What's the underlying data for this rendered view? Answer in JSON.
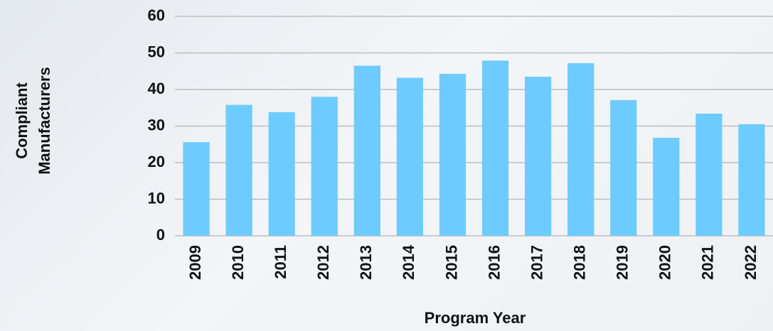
{
  "chart_data": {
    "type": "bar",
    "ylabel": [
      "Compliant",
      "Manufacturers"
    ],
    "xlabel": "Program Year",
    "categories": [
      "2009",
      "2010",
      "2011",
      "2012",
      "2013",
      "2014",
      "2015",
      "2016",
      "2017",
      "2018",
      "2019",
      "2020",
      "2021",
      "2022"
    ],
    "values": [
      25.6,
      35.8,
      33.8,
      38,
      46.5,
      43.2,
      44.3,
      47.9,
      43.5,
      47.2,
      37.1,
      26.8,
      33.4,
      30.5
    ],
    "color": "#6ecbff",
    "ylim": [
      0,
      60
    ],
    "yticks": [
      0,
      10,
      20,
      30,
      40,
      50,
      60
    ],
    "grid": true
  }
}
